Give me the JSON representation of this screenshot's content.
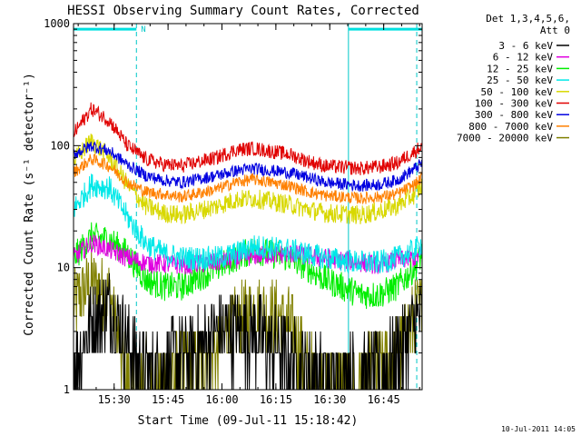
{
  "chart_data": {
    "type": "line",
    "title": "HESSI Observing Summary Count Rates, Corrected",
    "xlabel": "Start Time (09-Jul-11 15:18:42)",
    "ylabel": "Corrected Count Rate (s⁻¹ detector⁻¹)",
    "x_unit": "minutes since 15:18:42",
    "xlim": [
      0,
      97
    ],
    "ylim": [
      1,
      1000
    ],
    "yscale": "log",
    "x_ticks": [
      {
        "label": "15:30",
        "value": 11.3
      },
      {
        "label": "15:45",
        "value": 26.3
      },
      {
        "label": "16:00",
        "value": 41.3
      },
      {
        "label": "16:15",
        "value": 56.3
      },
      {
        "label": "16:30",
        "value": 71.3
      },
      {
        "label": "16:45",
        "value": 86.3
      }
    ],
    "y_ticks": [
      {
        "label": "1",
        "value": 1
      },
      {
        "label": "10",
        "value": 10
      },
      {
        "label": "100",
        "value": 100
      },
      {
        "label": "1000",
        "value": 1000
      }
    ],
    "legend": {
      "header": [
        "Det 1,3,4,5,6,",
        "Att 0"
      ],
      "placement": "right"
    },
    "series": [
      {
        "name": "3 - 6 keV",
        "color": "#000000",
        "x": [
          0,
          5,
          10,
          15,
          20,
          30,
          40,
          50,
          60,
          70,
          80,
          85,
          90,
          95,
          97
        ],
        "y": [
          1.6,
          3.5,
          5.0,
          2.5,
          1.3,
          1.8,
          3.0,
          3.0,
          1.8,
          1.2,
          1.3,
          1.3,
          2.0,
          3.5,
          4.0
        ]
      },
      {
        "name": "6 - 12 keV",
        "color": "#e000e0",
        "x": [
          0,
          5,
          10,
          15,
          20,
          30,
          40,
          50,
          60,
          70,
          80,
          85,
          90,
          95,
          97
        ],
        "y": [
          12,
          16,
          14,
          12,
          11,
          10.5,
          11,
          12.5,
          13,
          12,
          11,
          10.5,
          11.5,
          12,
          13
        ]
      },
      {
        "name": "12 - 25 keV",
        "color": "#00ee00",
        "x": [
          0,
          5,
          10,
          15,
          20,
          25,
          30,
          40,
          45,
          50,
          60,
          65,
          70,
          80,
          85,
          90,
          95,
          97
        ],
        "y": [
          12,
          18,
          17,
          13,
          8,
          7,
          7,
          10,
          12,
          14,
          12,
          10,
          8,
          6,
          6,
          7,
          10,
          13
        ]
      },
      {
        "name": "25 - 50 keV",
        "color": "#00e8e8",
        "x": [
          0,
          5,
          10,
          15,
          20,
          25,
          30,
          40,
          45,
          50,
          60,
          65,
          70,
          80,
          85,
          90,
          95,
          97
        ],
        "y": [
          30,
          48,
          45,
          26,
          16,
          13,
          12,
          12,
          13,
          15,
          14,
          13,
          12,
          11,
          11,
          12,
          14,
          16
        ]
      },
      {
        "name": "50 - 100 keV",
        "color": "#d8d800",
        "x": [
          0,
          5,
          10,
          15,
          20,
          25,
          30,
          40,
          45,
          50,
          60,
          65,
          70,
          80,
          85,
          90,
          95,
          97
        ],
        "y": [
          75,
          110,
          80,
          48,
          32,
          28,
          27,
          32,
          36,
          37,
          33,
          30,
          28,
          27,
          29,
          32,
          40,
          47
        ]
      },
      {
        "name": "100 - 300 keV",
        "color": "#e00000",
        "x": [
          0,
          5,
          10,
          15,
          20,
          25,
          30,
          40,
          45,
          50,
          60,
          65,
          70,
          80,
          85,
          90,
          95,
          97
        ],
        "y": [
          125,
          200,
          160,
          100,
          78,
          70,
          68,
          80,
          92,
          95,
          85,
          75,
          68,
          65,
          67,
          72,
          90,
          100
        ]
      },
      {
        "name": "300 - 800 keV",
        "color": "#0000e0",
        "x": [
          0,
          5,
          10,
          15,
          20,
          25,
          30,
          40,
          45,
          50,
          60,
          65,
          70,
          80,
          85,
          90,
          95,
          97
        ],
        "y": [
          85,
          100,
          90,
          70,
          57,
          52,
          50,
          57,
          62,
          65,
          60,
          55,
          50,
          47,
          48,
          52,
          65,
          72
        ]
      },
      {
        "name": "800 - 7000 keV",
        "color": "#ff8000",
        "x": [
          0,
          5,
          10,
          15,
          20,
          25,
          30,
          40,
          45,
          50,
          60,
          65,
          70,
          80,
          85,
          90,
          95,
          97
        ],
        "y": [
          60,
          78,
          68,
          50,
          42,
          40,
          38,
          44,
          50,
          53,
          47,
          42,
          39,
          37,
          38,
          40,
          48,
          55
        ]
      },
      {
        "name": "7000 - 20000 keV",
        "color": "#808000",
        "x": [
          0,
          5,
          10,
          12,
          15,
          18,
          20,
          25,
          30,
          40,
          45,
          50,
          55,
          60,
          65,
          70,
          75,
          80,
          85,
          90,
          95,
          97
        ],
        "y": [
          5.0,
          7.5,
          6.0,
          3.0,
          1.2,
          1.0,
          1.5,
          1.2,
          1.5,
          2.2,
          3.5,
          4.5,
          4.2,
          3.5,
          1.5,
          1.2,
          1.0,
          1.2,
          1.5,
          2.0,
          4.0,
          5.0
        ]
      }
    ],
    "annotations": {
      "saa_bars_value": 900,
      "saa_bars": [
        [
          0,
          17.5
        ],
        [
          76.5,
          97
        ]
      ],
      "marker_label": "N",
      "marker_x": 17.5,
      "solid_vlines": [
        0,
        76.5
      ],
      "dashed_vlines": [
        17.5,
        95.5
      ]
    }
  },
  "footer": {
    "timestamp": "10-Jul-2011 14:05"
  }
}
